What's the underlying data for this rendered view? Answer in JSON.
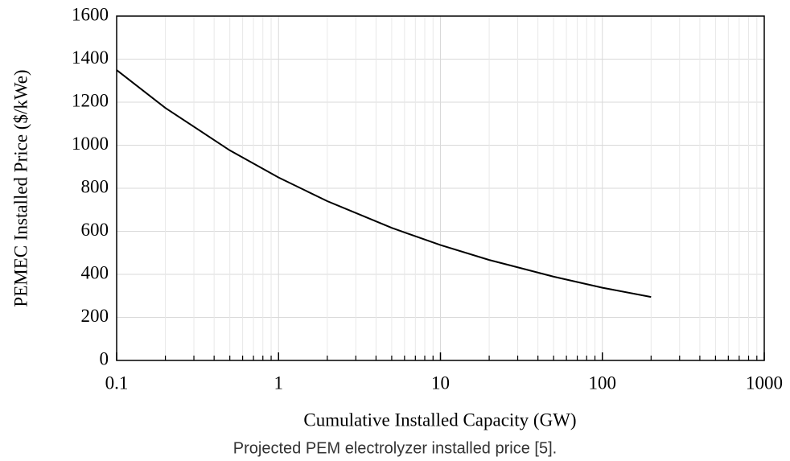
{
  "chart_data": {
    "type": "line",
    "xscale": "log",
    "grid": true,
    "minor_grid": true,
    "xlabel": "Cumulative Installed Capacity (GW)",
    "ylabel": "PEMEC Installed Price ($/kWe)",
    "caption": "Projected PEM electrolyzer installed price [5].",
    "x": [
      0.1,
      0.2,
      0.5,
      1,
      2,
      5,
      10,
      20,
      50,
      100,
      200
    ],
    "series": [
      {
        "name": "PEMEC installed price",
        "color": "#000000",
        "values": [
          1349,
          1173,
          976,
          850,
          740,
          616,
          536,
          467,
          389,
          338,
          295
        ]
      }
    ],
    "xlim": [
      0.1,
      1000
    ],
    "xticks": [
      0.1,
      1,
      10,
      100,
      1000
    ],
    "ylim": [
      0,
      1600
    ],
    "yticks": [
      0,
      200,
      400,
      600,
      800,
      1000,
      1200,
      1400,
      1600
    ]
  }
}
